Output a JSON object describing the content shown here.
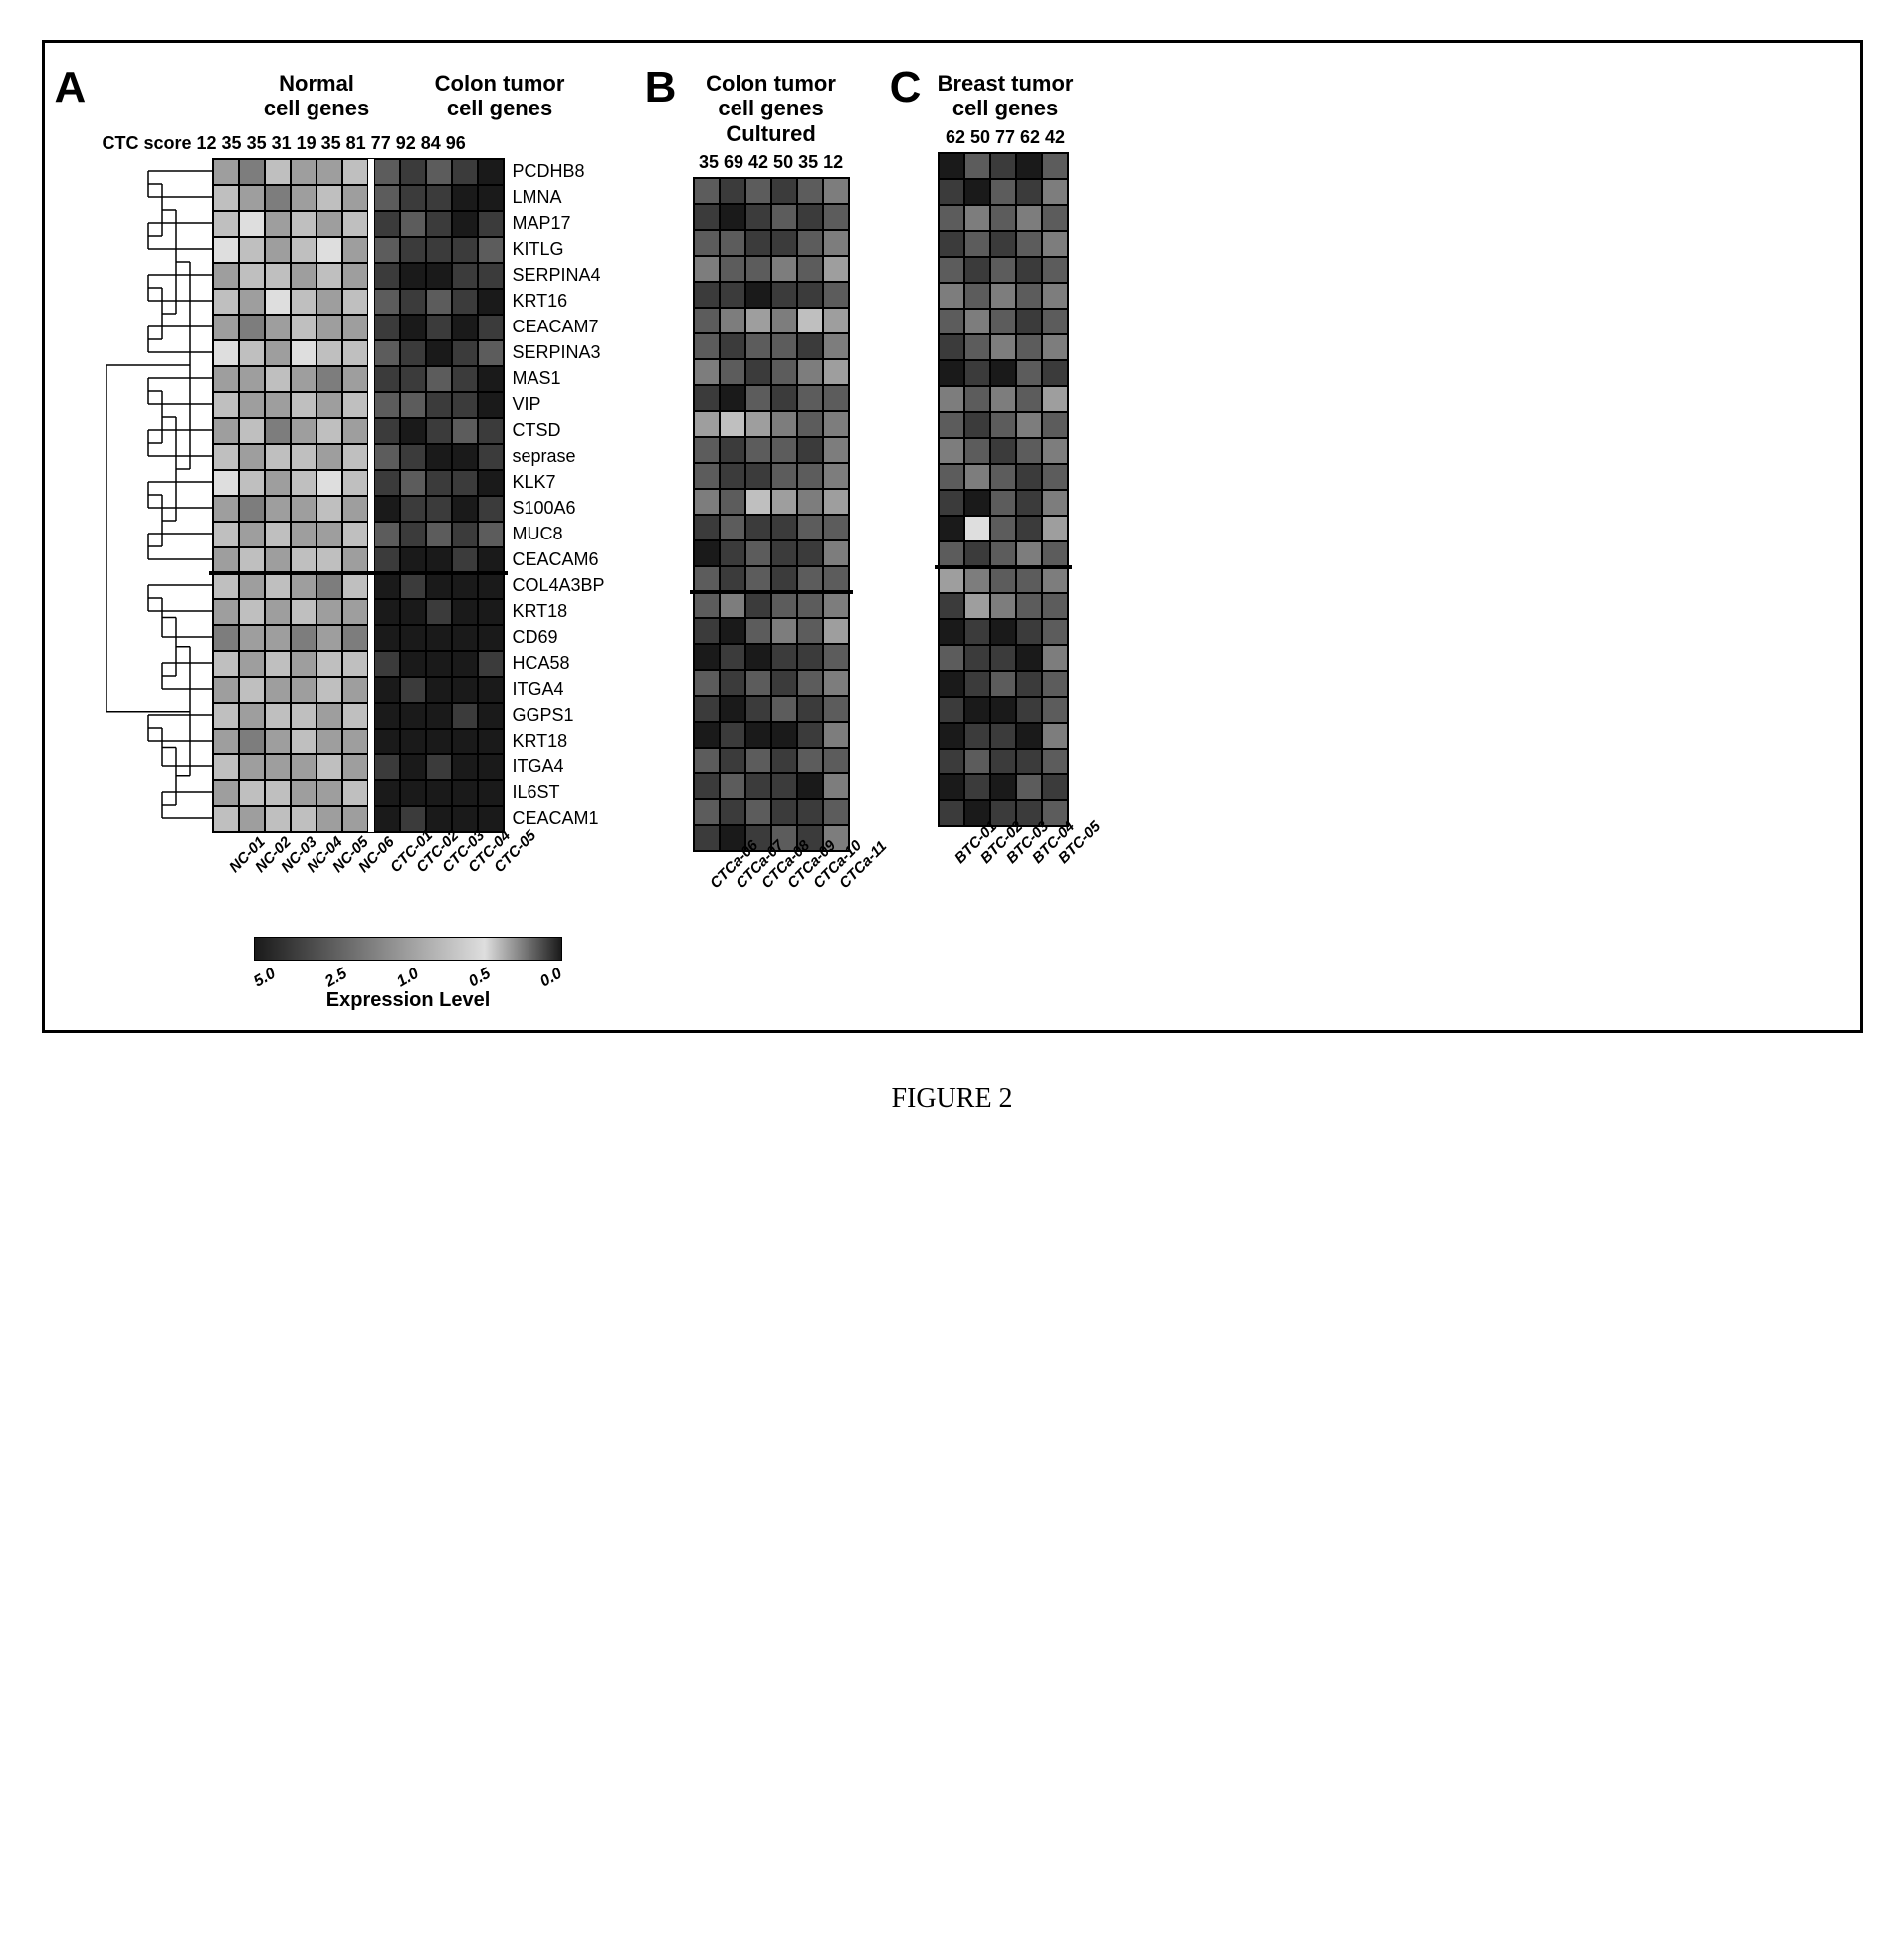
{
  "figure_caption": "FIGURE 2",
  "grayscale_map": {
    "v0": "#1a1a1a",
    "v1": "#3b3b3b",
    "v2": "#5c5c5c",
    "v3": "#7d7d7d",
    "v4": "#9e9e9e",
    "v5": "#bfbfbf",
    "v6": "#dedede",
    "v7": "#f2f2f2"
  },
  "cell_border": "#000000",
  "divider_after_gene_index": 16,
  "genes": [
    "PCDHB8",
    "LMNA",
    "MAP17",
    "KITLG",
    "SERPINA4",
    "KRT16",
    "CEACAM7",
    "SERPINA3",
    "MAS1",
    "VIP",
    "CTSD",
    "seprase",
    "KLK7",
    "S100A6",
    "MUC8",
    "CEACAM6",
    "COL4A3BP",
    "KRT18",
    "CD69",
    "HCA58",
    "ITGA4",
    "GGPS1",
    "KRT18",
    "ITGA4",
    "IL6ST",
    "CEACAM1"
  ],
  "panelA": {
    "letter": "A",
    "header_left": "Normal\ncell genes",
    "header_right": "Colon tumor\ncell genes",
    "ctc_label": "CTC score",
    "ctc_scores": [
      12,
      35,
      35,
      31,
      19,
      35,
      81,
      77,
      92,
      84,
      96
    ],
    "col_split_after": 6,
    "x_labels": [
      "NC-01",
      "NC-02",
      "NC-03",
      "NC-04",
      "NC-05",
      "NC-06",
      "CTC-01",
      "CTC-02",
      "CTC-03",
      "CTC-04",
      "CTC-05"
    ],
    "data": [
      [
        4,
        3,
        5,
        4,
        4,
        5,
        2,
        1,
        2,
        1,
        0
      ],
      [
        5,
        4,
        3,
        4,
        5,
        4,
        2,
        1,
        1,
        0,
        0
      ],
      [
        5,
        6,
        4,
        5,
        4,
        5,
        1,
        2,
        1,
        0,
        1
      ],
      [
        6,
        5,
        4,
        5,
        6,
        4,
        2,
        1,
        1,
        1,
        2
      ],
      [
        4,
        5,
        5,
        4,
        5,
        4,
        1,
        0,
        0,
        1,
        1
      ],
      [
        5,
        4,
        6,
        5,
        4,
        5,
        2,
        1,
        2,
        1,
        0
      ],
      [
        4,
        3,
        4,
        5,
        4,
        4,
        1,
        0,
        1,
        0,
        1
      ],
      [
        6,
        5,
        4,
        6,
        5,
        5,
        2,
        1,
        0,
        1,
        2
      ],
      [
        4,
        4,
        5,
        4,
        3,
        4,
        1,
        1,
        2,
        1,
        0
      ],
      [
        5,
        4,
        4,
        5,
        4,
        5,
        2,
        2,
        1,
        1,
        0
      ],
      [
        4,
        5,
        3,
        4,
        5,
        4,
        1,
        0,
        1,
        2,
        1
      ],
      [
        5,
        4,
        5,
        5,
        4,
        5,
        2,
        1,
        0,
        0,
        1
      ],
      [
        6,
        5,
        4,
        5,
        6,
        5,
        1,
        2,
        1,
        1,
        0
      ],
      [
        4,
        3,
        4,
        4,
        5,
        4,
        0,
        1,
        1,
        0,
        1
      ],
      [
        5,
        4,
        5,
        4,
        4,
        5,
        2,
        1,
        2,
        1,
        2
      ],
      [
        4,
        5,
        4,
        5,
        5,
        4,
        1,
        0,
        0,
        1,
        0
      ],
      [
        5,
        4,
        5,
        4,
        3,
        5,
        0,
        1,
        0,
        0,
        0
      ],
      [
        4,
        5,
        4,
        5,
        4,
        4,
        0,
        0,
        1,
        0,
        0
      ],
      [
        3,
        4,
        4,
        3,
        4,
        3,
        0,
        0,
        0,
        0,
        0
      ],
      [
        5,
        4,
        5,
        4,
        5,
        5,
        1,
        0,
        0,
        0,
        1
      ],
      [
        4,
        5,
        4,
        4,
        5,
        4,
        0,
        1,
        0,
        0,
        0
      ],
      [
        5,
        4,
        5,
        5,
        4,
        5,
        0,
        0,
        0,
        1,
        0
      ],
      [
        4,
        3,
        4,
        5,
        4,
        4,
        0,
        0,
        0,
        0,
        0
      ],
      [
        5,
        4,
        4,
        4,
        5,
        4,
        1,
        0,
        1,
        0,
        0
      ],
      [
        4,
        5,
        5,
        4,
        4,
        5,
        0,
        0,
        0,
        0,
        0
      ],
      [
        5,
        4,
        5,
        5,
        4,
        4,
        0,
        1,
        0,
        0,
        0
      ]
    ]
  },
  "panelB": {
    "letter": "B",
    "header": "Colon tumor\ncell genes\nCultured",
    "ctc_scores": [
      35,
      69,
      42,
      50,
      35,
      12
    ],
    "x_labels": [
      "CTCa-06",
      "CTCa-07",
      "CTCa-08",
      "CTCa-09",
      "CTCa-10",
      "CTCa-11"
    ],
    "data": [
      [
        2,
        1,
        2,
        1,
        2,
        3
      ],
      [
        1,
        0,
        1,
        2,
        1,
        2
      ],
      [
        2,
        2,
        1,
        1,
        2,
        3
      ],
      [
        3,
        2,
        2,
        3,
        2,
        4
      ],
      [
        1,
        1,
        0,
        1,
        1,
        2
      ],
      [
        2,
        3,
        4,
        3,
        5,
        4
      ],
      [
        2,
        1,
        2,
        2,
        1,
        3
      ],
      [
        3,
        2,
        1,
        2,
        3,
        4
      ],
      [
        1,
        0,
        2,
        1,
        2,
        2
      ],
      [
        4,
        5,
        4,
        3,
        2,
        3
      ],
      [
        2,
        1,
        2,
        2,
        1,
        3
      ],
      [
        2,
        1,
        1,
        2,
        2,
        3
      ],
      [
        3,
        2,
        5,
        4,
        3,
        4
      ],
      [
        1,
        2,
        1,
        1,
        2,
        2
      ],
      [
        0,
        1,
        2,
        1,
        1,
        3
      ],
      [
        2,
        1,
        2,
        1,
        2,
        2
      ],
      [
        2,
        3,
        1,
        2,
        2,
        3
      ],
      [
        1,
        0,
        2,
        3,
        2,
        4
      ],
      [
        0,
        1,
        0,
        1,
        1,
        2
      ],
      [
        2,
        1,
        2,
        1,
        2,
        3
      ],
      [
        1,
        0,
        1,
        2,
        1,
        2
      ],
      [
        0,
        1,
        0,
        0,
        1,
        3
      ],
      [
        2,
        1,
        2,
        1,
        2,
        2
      ],
      [
        1,
        2,
        1,
        1,
        0,
        3
      ],
      [
        2,
        1,
        2,
        1,
        1,
        2
      ],
      [
        1,
        0,
        1,
        2,
        1,
        3
      ]
    ]
  },
  "panelC": {
    "letter": "C",
    "header": "Breast tumor\ncell genes",
    "ctc_scores": [
      62,
      50,
      77,
      62,
      42
    ],
    "x_labels": [
      "BTC-01",
      "BTC-02",
      "BTC-03",
      "BTC-04",
      "BTC-05"
    ],
    "data": [
      [
        0,
        2,
        1,
        0,
        2
      ],
      [
        1,
        0,
        2,
        1,
        3
      ],
      [
        2,
        3,
        2,
        3,
        2
      ],
      [
        1,
        2,
        1,
        2,
        3
      ],
      [
        2,
        1,
        2,
        1,
        2
      ],
      [
        3,
        2,
        3,
        2,
        3
      ],
      [
        2,
        3,
        2,
        1,
        2
      ],
      [
        1,
        2,
        3,
        2,
        3
      ],
      [
        0,
        1,
        0,
        2,
        1
      ],
      [
        3,
        2,
        3,
        2,
        4
      ],
      [
        2,
        1,
        2,
        3,
        2
      ],
      [
        3,
        2,
        1,
        2,
        3
      ],
      [
        2,
        3,
        2,
        1,
        2
      ],
      [
        1,
        0,
        2,
        1,
        3
      ],
      [
        0,
        6,
        2,
        1,
        4
      ],
      [
        2,
        1,
        2,
        3,
        2
      ],
      [
        4,
        3,
        2,
        2,
        3
      ],
      [
        1,
        4,
        3,
        2,
        2
      ],
      [
        0,
        1,
        0,
        1,
        2
      ],
      [
        2,
        1,
        1,
        0,
        3
      ],
      [
        0,
        1,
        2,
        1,
        2
      ],
      [
        1,
        0,
        0,
        1,
        2
      ],
      [
        0,
        1,
        1,
        0,
        3
      ],
      [
        1,
        2,
        1,
        1,
        2
      ],
      [
        0,
        1,
        0,
        2,
        1
      ],
      [
        1,
        0,
        1,
        1,
        2
      ]
    ]
  },
  "legend": {
    "title": "Expression Level",
    "ticks": [
      "5.0",
      "2.5",
      "1.0",
      "0.5",
      "0.0"
    ],
    "gradient_stops": [
      "#1a1a1a",
      "#5c5c5c",
      "#9e9e9e",
      "#dedede",
      "#1a1a1a"
    ]
  }
}
